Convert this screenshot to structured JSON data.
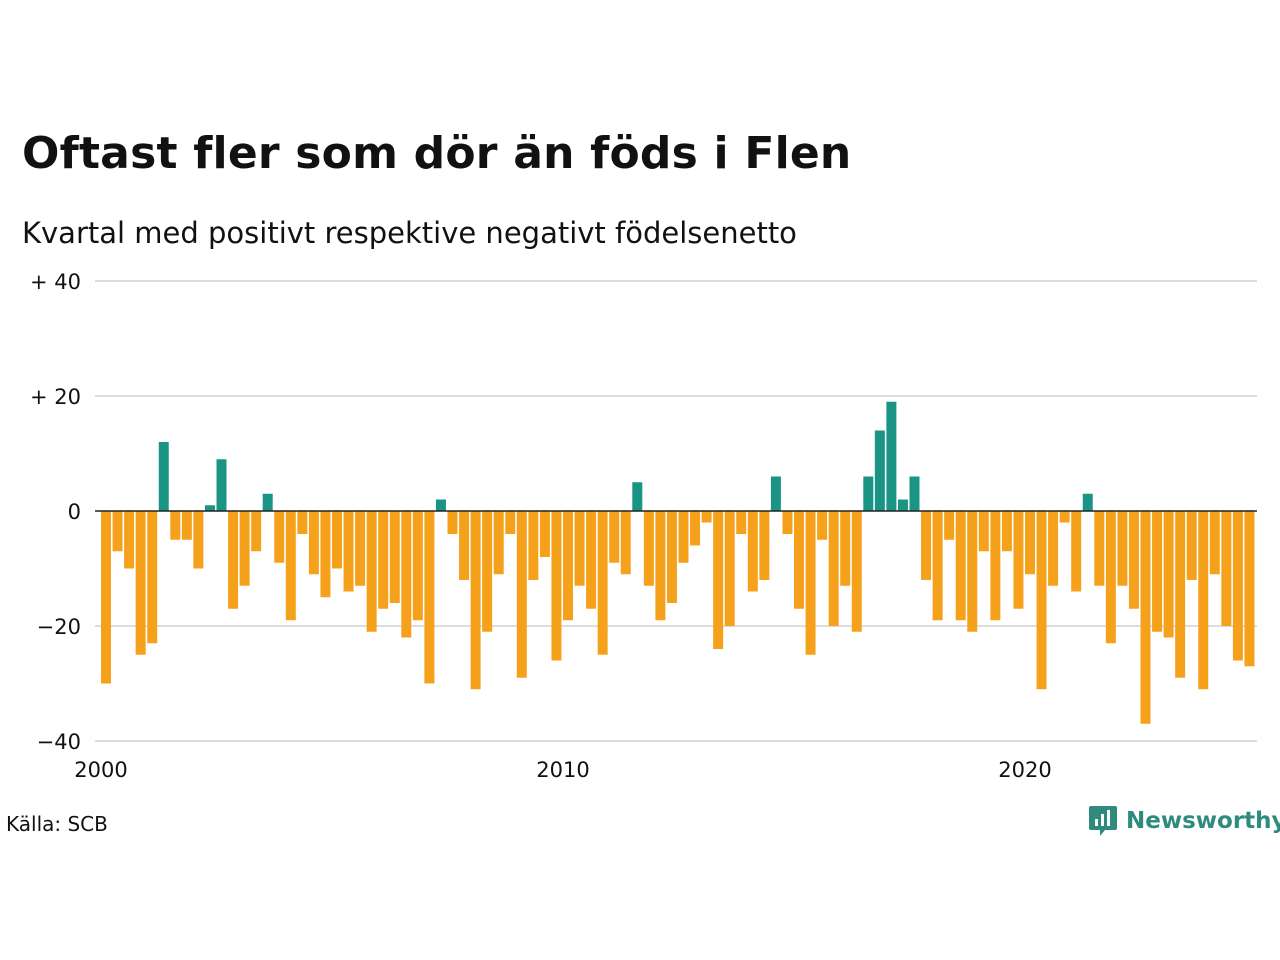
{
  "title": "Oftast fler som dör än föds i Flen",
  "subtitle": "Kvartal med positivt respektive negativt födelsenetto",
  "source": "Källa: SCB",
  "brand": {
    "name": "Newsworthy",
    "icon": "newsworthy-logo-icon"
  },
  "colors": {
    "positive": "#1a9485",
    "negative": "#f6a11c",
    "grid": "#dddddd",
    "zero_line": "#222222"
  },
  "chart_data": {
    "type": "bar",
    "x_unit": "quarter",
    "x_start": "2000 Q1",
    "x_end": "2025 Q1",
    "ylim": [
      -40,
      40
    ],
    "grid": true,
    "y_ticks": [
      {
        "value": 40,
        "label": "+ 40"
      },
      {
        "value": 20,
        "label": "+ 20"
      },
      {
        "value": 0,
        "label": "0"
      },
      {
        "value": -20,
        "label": "−20"
      },
      {
        "value": -40,
        "label": "−40"
      }
    ],
    "x_ticks": [
      {
        "value": "2000",
        "label": "2000"
      },
      {
        "value": "2010",
        "label": "2010"
      },
      {
        "value": "2020",
        "label": "2020"
      }
    ],
    "values": [
      -30,
      -7,
      -10,
      -25,
      -23,
      12,
      -5,
      -5,
      -10,
      1,
      9,
      -17,
      -13,
      -7,
      3,
      -9,
      -19,
      -4,
      -11,
      -15,
      -10,
      -14,
      -13,
      -21,
      -17,
      -16,
      -22,
      -19,
      -30,
      2,
      -4,
      -12,
      -31,
      -21,
      -11,
      -4,
      -29,
      -12,
      -8,
      -26,
      -19,
      -13,
      -17,
      -25,
      -9,
      -11,
      5,
      -13,
      -19,
      -16,
      -9,
      -6,
      -2,
      -24,
      -20,
      -4,
      -14,
      -12,
      6,
      -4,
      -17,
      -25,
      -5,
      -20,
      -13,
      -21,
      6,
      14,
      19,
      2,
      6,
      -12,
      -19,
      -5,
      -19,
      -21,
      -7,
      -19,
      -7,
      -17,
      -11,
      -31,
      -13,
      -2,
      -14,
      3,
      -13,
      -23,
      -13,
      -17,
      -37,
      -21,
      -22,
      -29,
      -12,
      -31,
      -11,
      -20,
      -26,
      -27
    ]
  }
}
